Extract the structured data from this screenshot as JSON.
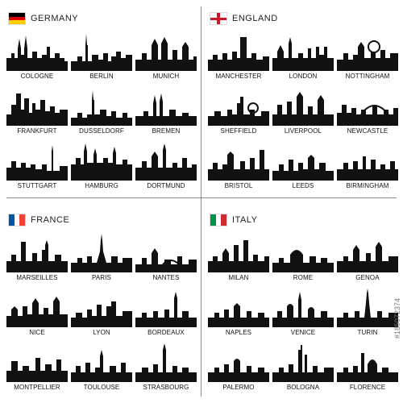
{
  "regions": [
    {
      "country": "GERMANY",
      "flag": "de",
      "cities": [
        "COLOGNE",
        "BERLIN",
        "MUNICH",
        "FRANKFURT",
        "DUSSELDORF",
        "BREMEN",
        "STUTTGART",
        "HAMBURG",
        "DORTMUND"
      ]
    },
    {
      "country": "ENGLAND",
      "flag": "en",
      "cities": [
        "MANCHESTER",
        "LONDON",
        "NOTTINGHAM",
        "SHEFFIELD",
        "LIVERPOOL",
        "NEWCASTLE",
        "BRISTOL",
        "LEEDS",
        "BIRMINGHAM"
      ]
    },
    {
      "country": "FRANCE",
      "flag": "fr",
      "cities": [
        "MARSEILLES",
        "PARIS",
        "NANTES",
        "NICE",
        "LYON",
        "BORDEAUX",
        "MONTPELLIER",
        "TOULOUSE",
        "STRASBOURG"
      ]
    },
    {
      "country": "ITALY",
      "flag": "it",
      "cities": [
        "MILAN",
        "ROME",
        "GENOA",
        "NAPLES",
        "VENICE",
        "TURIN",
        "PALERMO",
        "BOLOGNA",
        "FLORENCE"
      ]
    }
  ],
  "watermark": "#185072374",
  "colors": {
    "silhouette": "#111111",
    "divider": "#8a8a8a",
    "background": "#ffffff"
  }
}
